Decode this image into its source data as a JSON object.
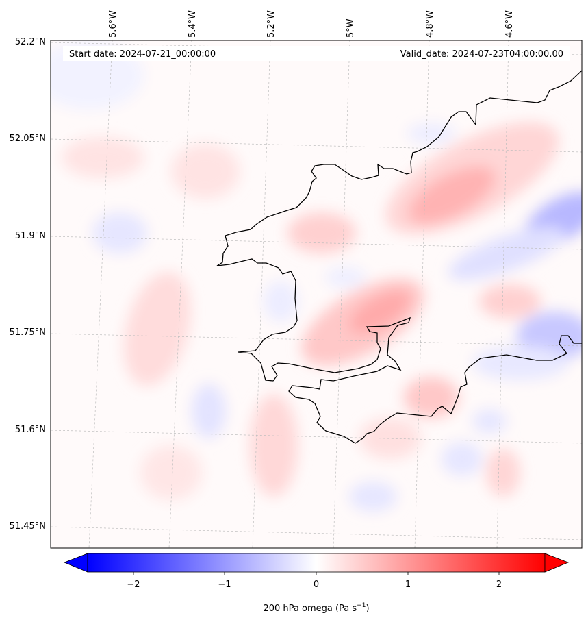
{
  "header": {
    "start_date": "Start date: 2024-07-21_00:00:00",
    "valid_date": "Valid_date: 2024-07-23T04:00:00.00"
  },
  "axes": {
    "lon_labels": [
      "5.6°W",
      "5.4°W",
      "5.2°W",
      "5°W",
      "4.8°W",
      "4.6°W"
    ],
    "lat_labels": [
      "52.2°N",
      "52.05°N",
      "51.9°N",
      "51.75°N",
      "51.6°N",
      "51.45°N"
    ],
    "gridlines": "dashed-grey"
  },
  "colorbar": {
    "label": "200 hPa omega (Pa s",
    "label_exponent": "−1",
    "label_close": ")",
    "ticks": [
      "−2",
      "−1",
      "0",
      "1",
      "2"
    ],
    "range": [
      -2.5,
      2.5
    ],
    "colormap": "bwr",
    "extend": "both",
    "low_color": "#0000ff",
    "mid_color": "#ffffff",
    "high_color": "#ff0000"
  },
  "map": {
    "region": "Pembrokeshire coast, SW Wales",
    "coastline_color": "#000000",
    "field": "200 hPa omega"
  }
}
